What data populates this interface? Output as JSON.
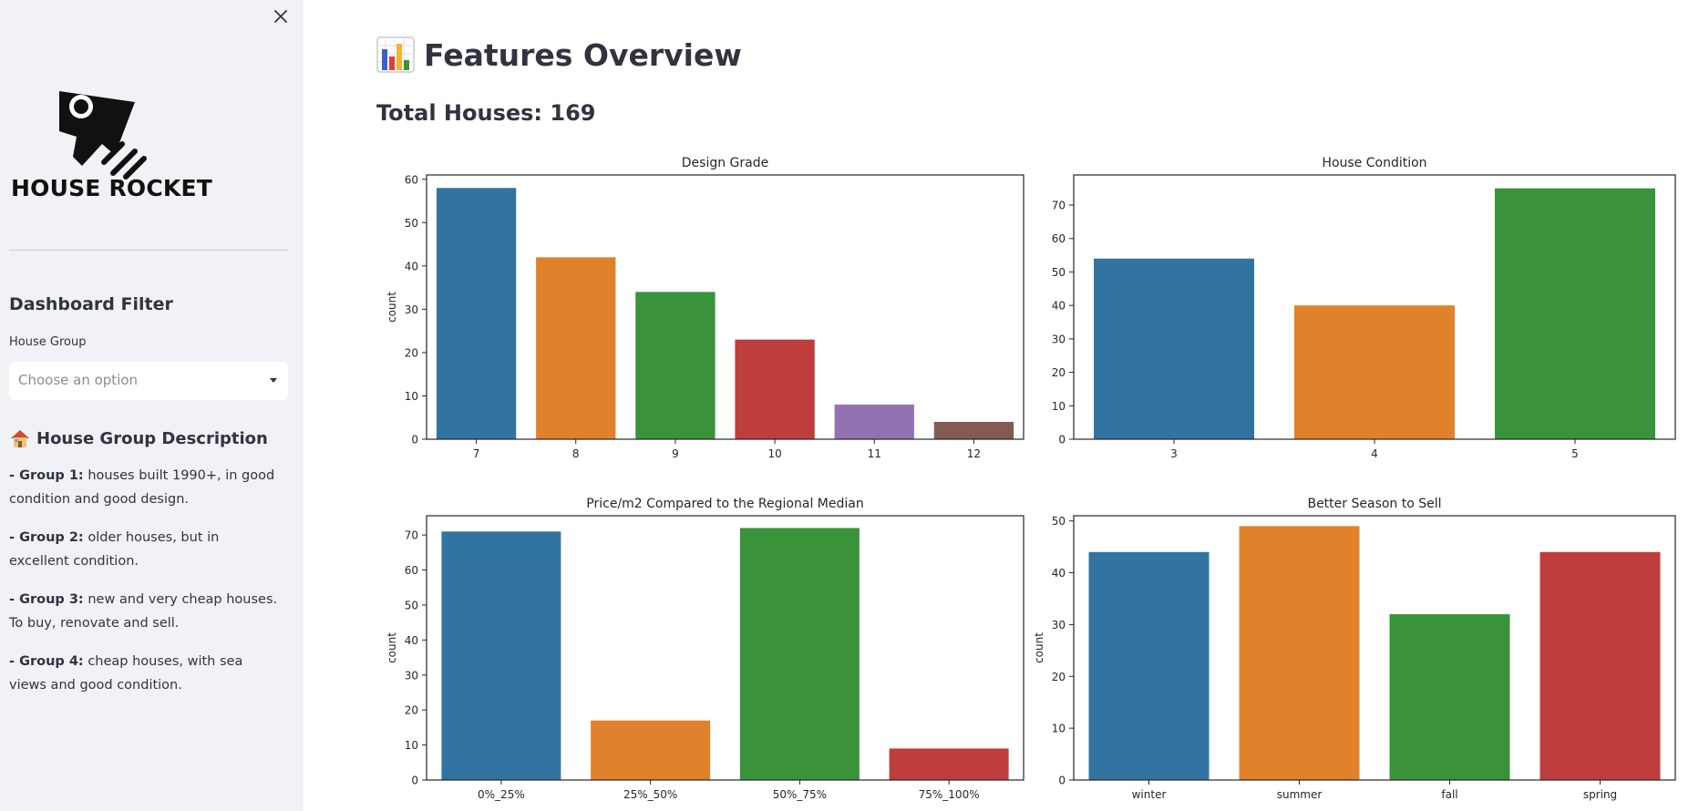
{
  "sidebar": {
    "logo_text": "HOUSE ROCKET",
    "filter_title": "Dashboard Filter",
    "select_label": "House Group",
    "select_placeholder": "Choose an option",
    "description_title": "House Group Description",
    "groups": [
      {
        "label": "- Group 1:",
        "text": "houses built 1990+, in good condition and good design."
      },
      {
        "label": "- Group 2:",
        "text": "older houses, but in excellent condition."
      },
      {
        "label": "- Group 3:",
        "text": "new and very cheap houses. To buy, renovate and sell."
      },
      {
        "label": "- Group 4:",
        "text": "cheap houses, with sea views and good condition."
      }
    ]
  },
  "main": {
    "title": "Features Overview",
    "total_label": "Total Houses:",
    "total_value": "169"
  },
  "colors": {
    "c1": "#3274a1",
    "c2": "#e1812c",
    "c3": "#3a923a",
    "c4": "#c03d3e",
    "c5": "#9372b2",
    "c6": "#845b53"
  },
  "chart_data": [
    {
      "type": "bar",
      "title": "Design Grade",
      "ylabel": "count",
      "xlabel": "",
      "categories": [
        "7",
        "8",
        "9",
        "10",
        "11",
        "12"
      ],
      "values": [
        58,
        42,
        34,
        23,
        8,
        4
      ],
      "ylim": [
        0,
        61
      ],
      "yticks": [
        0,
        10,
        20,
        30,
        40,
        50,
        60
      ]
    },
    {
      "type": "bar",
      "title": "House Condition",
      "ylabel": "",
      "xlabel": "",
      "categories": [
        "3",
        "4",
        "5"
      ],
      "values": [
        54,
        40,
        75
      ],
      "ylim": [
        0,
        79
      ],
      "yticks": [
        0,
        10,
        20,
        30,
        40,
        50,
        60,
        70
      ]
    },
    {
      "type": "bar",
      "title": "Price/m2 Compared to the Regional Median",
      "ylabel": "count",
      "xlabel": "",
      "categories": [
        "0%_25%",
        "25%_50%",
        "50%_75%",
        "75%_100%"
      ],
      "values": [
        71,
        17,
        72,
        9
      ],
      "ylim": [
        0,
        75.5
      ],
      "yticks": [
        0,
        10,
        20,
        30,
        40,
        50,
        60,
        70
      ]
    },
    {
      "type": "bar",
      "title": "Better Season to Sell",
      "ylabel": "count",
      "xlabel": "",
      "categories": [
        "winter",
        "summer",
        "fall",
        "spring"
      ],
      "values": [
        44,
        49,
        32,
        44
      ],
      "ylim": [
        0,
        51
      ],
      "yticks": [
        0,
        10,
        20,
        30,
        40,
        50
      ]
    }
  ]
}
